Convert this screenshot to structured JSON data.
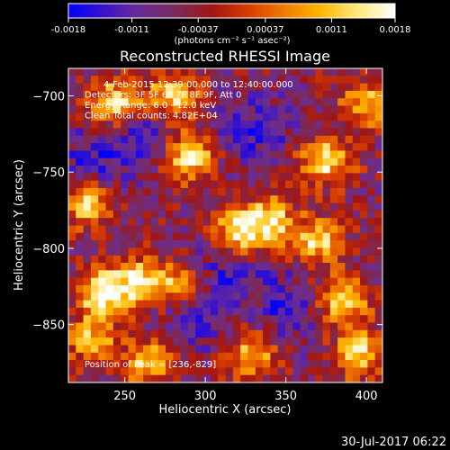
{
  "chart_data": {
    "type": "heatmap",
    "title": "Reconstructed RHESSI Image",
    "xlabel": "Heliocentric X (arcsec)",
    "ylabel": "Heliocentric Y (arcsec)",
    "xlim": [
      215,
      410
    ],
    "ylim": [
      -888,
      -682
    ],
    "x_ticks": [
      250,
      300,
      350,
      400
    ],
    "y_ticks": [
      -700,
      -750,
      -800,
      -850
    ],
    "colorbar": {
      "ticks": [
        -0.0018,
        -0.0011,
        -0.00037,
        0.00037,
        0.0011,
        0.0018
      ],
      "tick_labels": [
        "-0.0018",
        "-0.0011",
        "-0.00037",
        "0.00037",
        "0.0011",
        "0.0018"
      ],
      "unit_label": "(photons cm⁻² s⁻¹ asec⁻²)",
      "colormap": [
        "#0000ff",
        "#3a12c8",
        "#6a2d96",
        "#7a2b5a",
        "#a11515",
        "#d83c00",
        "#f07b00",
        "#ffb400",
        "#ffe676",
        "#ffffff"
      ]
    },
    "annotations": [
      "4-Feb-2015 12:39:00.000 to 12:40:00.000",
      "Detectors: 3F 5F 6F 7F 8F 9F, Att 0",
      "Energy Range: 6.0 - 12.0 keV",
      "Clean      Total counts: 4.82E+04"
    ],
    "peak_label": "Position of Peak = [236,-829]",
    "peak": {
      "x": 236,
      "y": -829
    },
    "bright_regions": [
      {
        "x": 245,
        "y": -705,
        "level": 0.95
      },
      {
        "x": 280,
        "y": -700,
        "level": 0.85
      },
      {
        "x": 290,
        "y": -740,
        "level": 0.95
      },
      {
        "x": 375,
        "y": -742,
        "level": 0.9
      },
      {
        "x": 320,
        "y": -790,
        "level": 0.95
      },
      {
        "x": 340,
        "y": -782,
        "level": 0.85
      },
      {
        "x": 227,
        "y": -770,
        "level": 0.85
      },
      {
        "x": 236,
        "y": -829,
        "level": 1.0
      },
      {
        "x": 260,
        "y": -822,
        "level": 0.85
      },
      {
        "x": 285,
        "y": -825,
        "level": 0.7
      },
      {
        "x": 385,
        "y": -835,
        "level": 0.9
      },
      {
        "x": 370,
        "y": -795,
        "level": 0.8
      },
      {
        "x": 395,
        "y": -870,
        "level": 0.85
      },
      {
        "x": 330,
        "y": -870,
        "level": 0.75
      },
      {
        "x": 265,
        "y": -875,
        "level": 0.75
      },
      {
        "x": 230,
        "y": -860,
        "level": 0.7
      },
      {
        "x": 400,
        "y": -705,
        "level": 0.7
      }
    ],
    "dark_regions": [
      {
        "x": 260,
        "y": -725
      },
      {
        "x": 330,
        "y": -722
      },
      {
        "x": 290,
        "y": -845
      },
      {
        "x": 315,
        "y": -810
      },
      {
        "x": 350,
        "y": -840
      },
      {
        "x": 230,
        "y": -745
      }
    ]
  },
  "footer": {
    "timestamp": "30-Jul-2017 06:22"
  }
}
